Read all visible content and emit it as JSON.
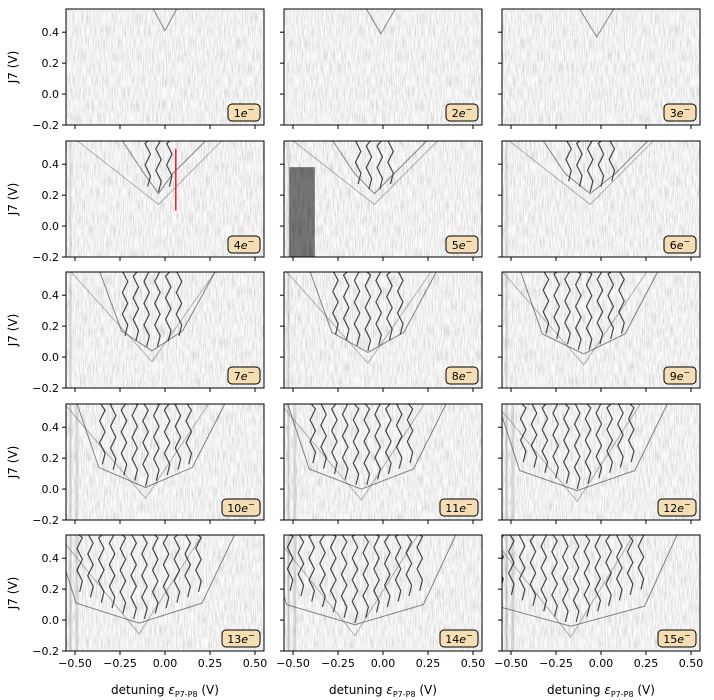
{
  "figure": {
    "rows": 5,
    "cols": 3,
    "colors": {
      "axis": "#000000",
      "data_dark": "#1a1a1a",
      "noise": "#bdbdbd",
      "badge_fill": "#f5deb3",
      "badge_stroke": "#000000",
      "marker_line": "#e0202a"
    },
    "xlabel_prefix": "detuning ",
    "xlabel_symbol": "ε",
    "xlabel_sub": "P7-P8",
    "xlabel_suffix": " (V)",
    "ylabel": "J7 (V)"
  },
  "chart_data": {
    "type": "heatmap",
    "description_type": "charge stability diagrams grid",
    "xlim": [
      -0.55,
      0.55
    ],
    "ylim": [
      -0.2,
      0.55
    ],
    "x_ticks": [
      -0.5,
      -0.25,
      0.0,
      0.25,
      0.5
    ],
    "x_tick_labels": [
      "−0.50",
      "−0.25",
      "0.00",
      "0.25",
      "0.50"
    ],
    "y_ticks": [
      -0.2,
      0.0,
      0.2,
      0.4
    ],
    "y_tick_labels": [
      "−0.2",
      "0.0",
      "0.2",
      "0.4"
    ],
    "electron_counts": [
      1,
      2,
      3,
      4,
      5,
      6,
      7,
      8,
      9,
      10,
      11,
      12,
      13,
      14,
      15
    ],
    "panel_label_suffix": "e",
    "panel_label_sup": "−",
    "annotations": {
      "red_line_panel": 4,
      "red_line_x": 0.06,
      "red_line_y": [
        0.1,
        0.5
      ],
      "dark_block_panel": 5,
      "dark_block_x": [
        -0.52,
        -0.38
      ],
      "dark_block_y": [
        -0.2,
        0.38
      ]
    }
  }
}
